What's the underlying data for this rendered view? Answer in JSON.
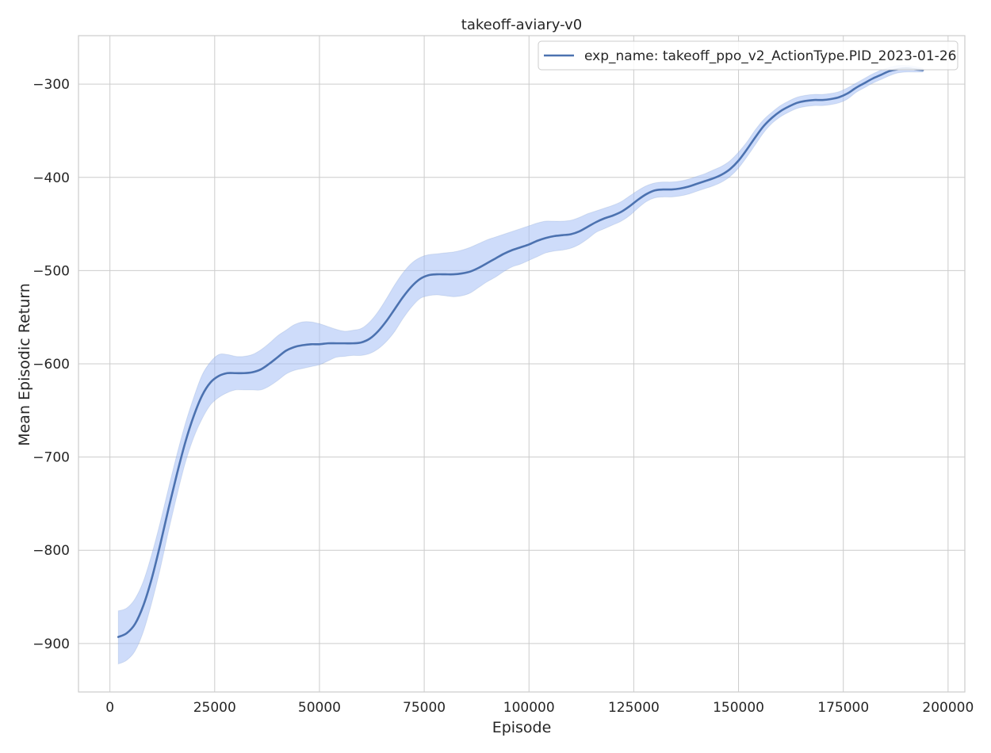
{
  "chart_data": {
    "type": "line",
    "title": "takeoff-aviary-v0",
    "xlabel": "Episode",
    "ylabel": "Mean Episodic Return",
    "xlim": [
      -7500,
      204000
    ],
    "ylim": [
      -952,
      -248
    ],
    "x_ticks": [
      0,
      25000,
      50000,
      75000,
      100000,
      125000,
      150000,
      175000,
      200000
    ],
    "y_ticks": [
      -900,
      -800,
      -700,
      -600,
      -500,
      -400,
      -300
    ],
    "grid": true,
    "legend_position": "top-right",
    "line_color": "#4c72b0",
    "band_color": "#a6bff5",
    "series": [
      {
        "name": "exp_name: takeoff_ppo_v2_ActionType.PID_2023-01-26",
        "x": [
          2000,
          4000,
          6000,
          8000,
          10000,
          12000,
          14000,
          16000,
          18000,
          20000,
          22000,
          24000,
          26000,
          28000,
          30000,
          32000,
          34000,
          36000,
          38000,
          40000,
          42000,
          44000,
          46000,
          48000,
          50000,
          52000,
          54000,
          56000,
          58000,
          60000,
          62000,
          64000,
          66000,
          68000,
          70000,
          72000,
          74000,
          76000,
          78000,
          80000,
          82000,
          84000,
          86000,
          88000,
          90000,
          92000,
          94000,
          96000,
          98000,
          100000,
          102000,
          104000,
          106000,
          108000,
          110000,
          112000,
          114000,
          116000,
          118000,
          120000,
          122000,
          124000,
          126000,
          128000,
          130000,
          132000,
          134000,
          136000,
          138000,
          140000,
          142000,
          144000,
          146000,
          148000,
          150000,
          152000,
          154000,
          156000,
          158000,
          160000,
          162000,
          164000,
          166000,
          168000,
          170000,
          172000,
          174000,
          176000,
          178000,
          180000,
          182000,
          184000,
          186000,
          188000,
          190000,
          192000,
          194000
        ],
        "mean": [
          -893,
          -889,
          -879,
          -859,
          -830,
          -794,
          -755,
          -718,
          -684,
          -656,
          -634,
          -620,
          -613,
          -610,
          -610,
          -610,
          -609,
          -606,
          -600,
          -593,
          -586,
          -582,
          -580,
          -579,
          -579,
          -578,
          -578,
          -578,
          -578,
          -577,
          -573,
          -565,
          -554,
          -541,
          -528,
          -517,
          -509,
          -505,
          -504,
          -504,
          -504,
          -503,
          -501,
          -497,
          -492,
          -487,
          -482,
          -478,
          -475,
          -472,
          -468,
          -465,
          -463,
          -462,
          -461,
          -458,
          -453,
          -448,
          -444,
          -441,
          -437,
          -431,
          -424,
          -418,
          -414,
          -413,
          -413,
          -412,
          -410,
          -407,
          -404,
          -401,
          -397,
          -391,
          -382,
          -370,
          -357,
          -345,
          -336,
          -329,
          -324,
          -320,
          -318,
          -317,
          -317,
          -316,
          -314,
          -310,
          -304,
          -299,
          -294,
          -290,
          -286,
          -284,
          -283,
          -284,
          -285
        ],
        "upper": [
          -865,
          -862,
          -852,
          -833,
          -804,
          -770,
          -733,
          -697,
          -664,
          -636,
          -612,
          -598,
          -590,
          -590,
          -592,
          -592,
          -590,
          -585,
          -578,
          -570,
          -564,
          -558,
          -555,
          -555,
          -557,
          -560,
          -563,
          -565,
          -564,
          -562,
          -555,
          -544,
          -530,
          -515,
          -502,
          -492,
          -486,
          -483,
          -482,
          -481,
          -480,
          -478,
          -475,
          -471,
          -467,
          -464,
          -461,
          -458,
          -455,
          -452,
          -449,
          -447,
          -447,
          -447,
          -446,
          -443,
          -439,
          -436,
          -433,
          -430,
          -426,
          -420,
          -414,
          -409,
          -406,
          -405,
          -405,
          -404,
          -402,
          -399,
          -396,
          -392,
          -388,
          -382,
          -373,
          -362,
          -349,
          -338,
          -330,
          -323,
          -318,
          -314,
          -312,
          -311,
          -311,
          -310,
          -308,
          -304,
          -299,
          -294,
          -289,
          -285,
          -282,
          -280,
          -280,
          -281,
          -283
        ],
        "lower": [
          -922,
          -918,
          -908,
          -887,
          -856,
          -820,
          -779,
          -741,
          -706,
          -679,
          -659,
          -644,
          -636,
          -631,
          -628,
          -628,
          -628,
          -628,
          -624,
          -618,
          -611,
          -607,
          -605,
          -603,
          -601,
          -597,
          -593,
          -592,
          -591,
          -591,
          -589,
          -584,
          -576,
          -565,
          -551,
          -539,
          -530,
          -527,
          -526,
          -527,
          -528,
          -527,
          -524,
          -518,
          -512,
          -507,
          -501,
          -496,
          -493,
          -489,
          -485,
          -481,
          -479,
          -478,
          -476,
          -472,
          -466,
          -459,
          -455,
          -451,
          -447,
          -441,
          -433,
          -426,
          -422,
          -421,
          -421,
          -420,
          -418,
          -415,
          -412,
          -409,
          -405,
          -399,
          -390,
          -378,
          -365,
          -352,
          -342,
          -335,
          -330,
          -326,
          -324,
          -323,
          -323,
          -322,
          -320,
          -316,
          -309,
          -304,
          -299,
          -295,
          -291,
          -288,
          -287,
          -287,
          -287
        ]
      }
    ]
  }
}
